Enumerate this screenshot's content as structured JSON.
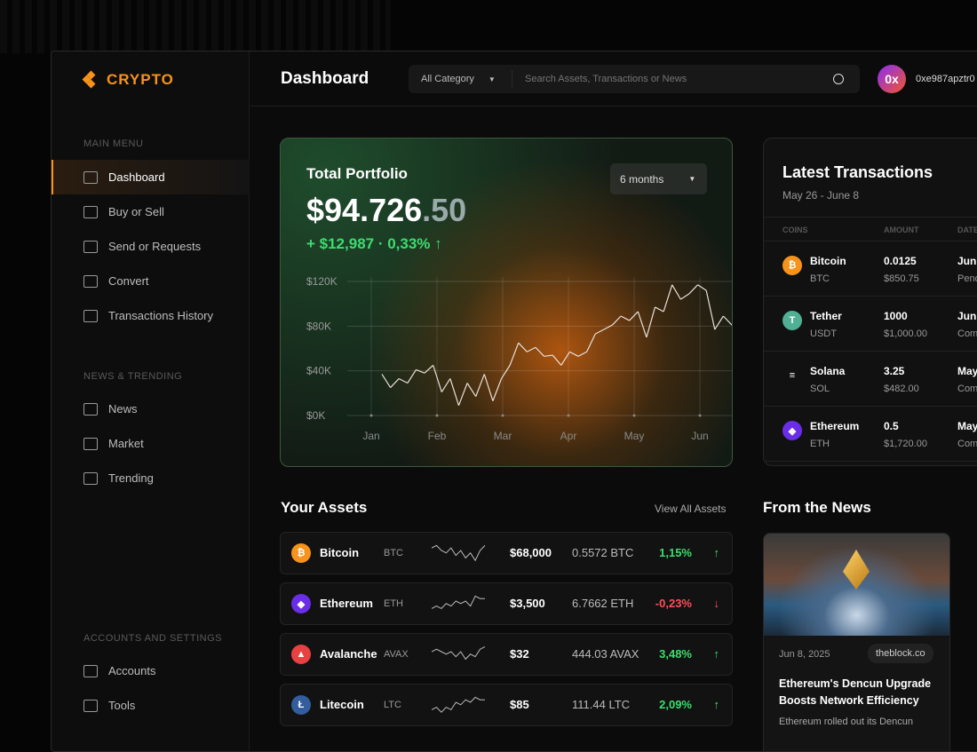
{
  "brand": {
    "name": "CRYPTO",
    "accent": "#f7931a"
  },
  "sidebar": {
    "main_menu": "MAIN MENU",
    "main_items": [
      {
        "label": "Dashboard",
        "icon": "presentation-icon",
        "active": true
      },
      {
        "label": "Buy or Sell",
        "icon": "wallet-icon"
      },
      {
        "label": "Send or Requests",
        "icon": "send-icon"
      },
      {
        "label": "Convert",
        "icon": "convert-icon"
      },
      {
        "label": "Transactions History",
        "icon": "history-icon"
      }
    ],
    "news_heading": "NEWS & TRENDING",
    "news_items": [
      {
        "label": "News",
        "icon": "newspaper-icon"
      },
      {
        "label": "Market",
        "icon": "market-icon"
      },
      {
        "label": "Trending",
        "icon": "trending-icon"
      }
    ],
    "settings_heading": "ACCOUNTS AND SETTINGS",
    "settings_items": [
      {
        "label": "Accounts",
        "icon": "folder-user-icon"
      },
      {
        "label": "Tools",
        "icon": "grid-tools-icon"
      }
    ]
  },
  "header": {
    "title": "Dashboard",
    "category": "All Category",
    "search_placeholder": "Search Assets, Transactions or News",
    "avatar": "0x",
    "address": "0xe987apztr0"
  },
  "portfolio": {
    "label": "Total Portfolio",
    "value_main": "$94.726",
    "value_decimals": ".50",
    "change": "+ $12,987 · 0,33% ↑",
    "period": "6 months"
  },
  "chart_data": {
    "type": "line",
    "ylabels": [
      "$120K",
      "$80K",
      "$40K",
      "$0K"
    ],
    "ylim": [
      0,
      120000
    ],
    "xlabels": [
      "Jan",
      "Feb",
      "Mar",
      "Apr",
      "May",
      "Jun"
    ],
    "grid": true,
    "values": [
      37,
      25,
      33,
      29,
      41,
      38,
      45,
      21,
      33,
      9,
      29,
      17,
      37,
      13,
      33,
      45,
      65,
      57,
      61,
      53,
      54,
      45,
      57,
      53,
      57,
      73,
      77,
      81,
      89,
      85,
      93,
      70,
      97,
      93,
      117,
      104,
      109,
      117,
      112,
      77,
      89,
      81
    ]
  },
  "transactions": {
    "title": "Latest Transactions",
    "range": "May 26 - June 8",
    "columns": [
      "COINS",
      "AMOUNT",
      "DATE"
    ],
    "rows": [
      {
        "name": "Bitcoin",
        "sym": "BTC",
        "amount": "0.0125",
        "usd": "$850.75",
        "date": "Jun",
        "status": "Pend",
        "color": "#f7931a",
        "glyph": "₿"
      },
      {
        "name": "Tether",
        "sym": "USDT",
        "amount": "1000",
        "usd": "$1,000.00",
        "date": "Jun",
        "status": "Com",
        "color": "#50af95",
        "glyph": "T"
      },
      {
        "name": "Solana",
        "sym": "SOL",
        "amount": "3.25",
        "usd": "$482.00",
        "date": "May",
        "status": "Com",
        "color": "#111",
        "glyph": "≡"
      },
      {
        "name": "Ethereum",
        "sym": "ETH",
        "amount": "0.5",
        "usd": "$1,720.00",
        "date": "May",
        "status": "Com",
        "color": "#6a2ee8",
        "glyph": "◆"
      }
    ]
  },
  "assets": {
    "title": "Your Assets",
    "view_all": "View All Assets",
    "rows": [
      {
        "name": "Bitcoin",
        "sym": "BTC",
        "price": "$68,000",
        "holding": "0.5572 BTC",
        "change": "1,15%",
        "arrow": "↑",
        "up": true,
        "color": "#f7931a",
        "glyph": "₿",
        "spark": [
          6,
          7,
          5,
          4,
          6,
          3,
          5,
          2,
          4,
          1,
          5,
          7
        ]
      },
      {
        "name": "Ethereum",
        "sym": "ETH",
        "price": "$3,500",
        "holding": "6.7662 ETH",
        "change": "-0,23%",
        "arrow": "↓",
        "up": false,
        "color": "#6a2ee8",
        "glyph": "◆",
        "spark": [
          2,
          3,
          2,
          4,
          3,
          5,
          4,
          5,
          3,
          7,
          6,
          6
        ]
      },
      {
        "name": "Avalanche",
        "sym": "AVAX",
        "price": "$32",
        "holding": "444.03 AVAX",
        "change": "3,48%",
        "arrow": "↑",
        "up": true,
        "color": "#e84142",
        "glyph": "▲",
        "spark": [
          5,
          6,
          5,
          4,
          5,
          3,
          5,
          2,
          4,
          3,
          6,
          7
        ]
      },
      {
        "name": "Litecoin",
        "sym": "LTC",
        "price": "$85",
        "holding": "111.44 LTC",
        "change": "2,09%",
        "arrow": "↑",
        "up": true,
        "color": "#345d9d",
        "glyph": "Ł",
        "spark": [
          2,
          3,
          1,
          3,
          2,
          5,
          4,
          6,
          5,
          7,
          6,
          6
        ]
      }
    ]
  },
  "news": {
    "title": "From the News",
    "date": "Jun 8, 2025",
    "source": "theblock.co",
    "headline": "Ethereum's Dencun Upgrade Boosts Network Efficiency",
    "excerpt": "Ethereum rolled out its Dencun"
  }
}
